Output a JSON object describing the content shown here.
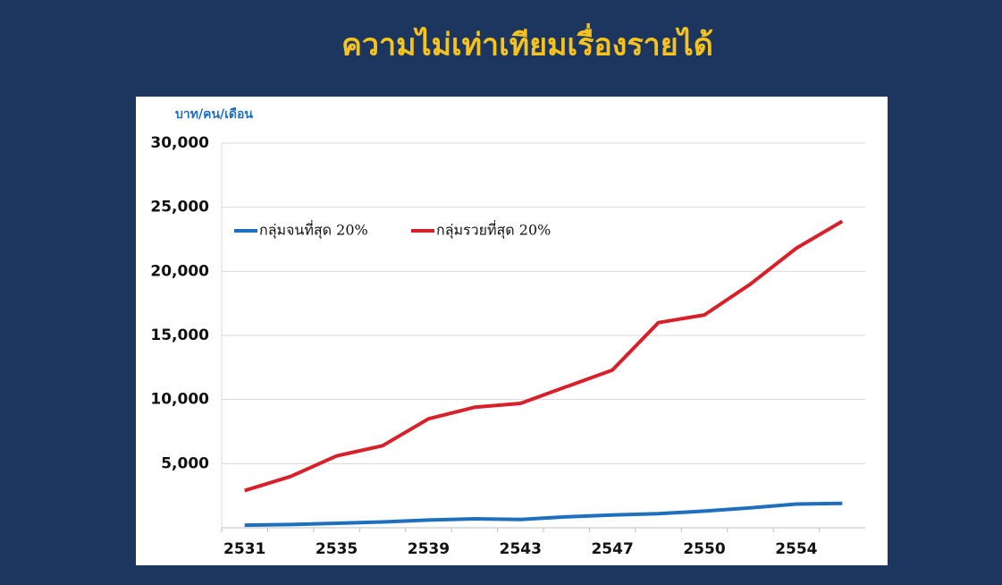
{
  "chart_data": {
    "type": "line",
    "title": "ความไม่เท่าเทียมเรื่องรายได้",
    "y_label": "บาท/คน/เดือน",
    "categories": [
      "2531",
      null,
      "2535",
      null,
      "2539",
      null,
      "2543",
      null,
      "2547",
      null,
      "2550",
      null,
      "2554",
      null
    ],
    "series": [
      {
        "name": "กลุ่มจนที่สุด 20%",
        "color": "#1f6fbf",
        "values": [
          200,
          250,
          350,
          450,
          600,
          700,
          650,
          850,
          1000,
          1100,
          1300,
          1550,
          1850,
          1900
        ]
      },
      {
        "name": "กลุ่มรวยที่สุด 20%",
        "color": "#d7202a",
        "values": [
          2900,
          4000,
          5600,
          6400,
          8500,
          9400,
          9700,
          11000,
          12300,
          16000,
          16600,
          19000,
          21800,
          23900
        ]
      }
    ],
    "ylim": [
      0,
      30000
    ],
    "yticks": [
      {
        "value": 5000,
        "label": "5,000"
      },
      {
        "value": 10000,
        "label": "10,000"
      },
      {
        "value": 15000,
        "label": "15,000"
      },
      {
        "value": 20000,
        "label": "20,000"
      },
      {
        "value": 25000,
        "label": "25,000"
      },
      {
        "value": 30000,
        "label": "30,000"
      }
    ],
    "grid": true,
    "legend": "top-left"
  }
}
